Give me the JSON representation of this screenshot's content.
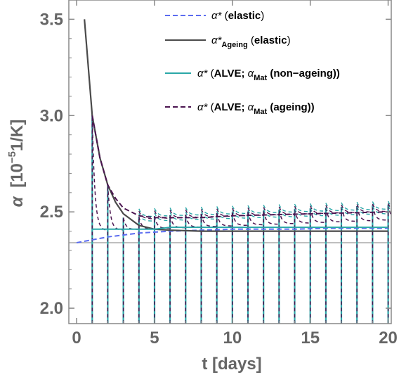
{
  "chart_data": {
    "type": "line",
    "xlabel": {
      "symbol": "t",
      "unit": "[days]"
    },
    "ylabel": {
      "symbol": "α",
      "unit_prefix": "[10",
      "exponent": "−5",
      "unit_suffix": "1/K]"
    },
    "xlim": [
      -0.5,
      20.2
    ],
    "ylim": [
      1.92,
      3.6
    ],
    "xticks": [
      "0",
      "5",
      "10",
      "15",
      "20"
    ],
    "yticks": [
      "2.0",
      "2.5",
      "3.0",
      "3.5"
    ],
    "grid": false,
    "legend_position": "top-right",
    "colors": {
      "elastic": "#5B6CF0",
      "ageing_elastic": "#4a4a4a",
      "alve_nonageing": "#2AA8A8",
      "alve_ageing": "#4B1450",
      "reference": "#999999"
    },
    "reference_level": 2.34,
    "series": [
      {
        "key": "elastic",
        "legend": {
          "prefix": "α* (",
          "bold": "elastic",
          "suffix": ")"
        },
        "style": "dashed",
        "x": [
          0,
          2,
          4,
          6,
          8,
          10,
          12,
          14,
          16,
          18,
          20
        ],
        "y": [
          2.34,
          2.37,
          2.39,
          2.4,
          2.405,
          2.41,
          2.41,
          2.41,
          2.415,
          2.415,
          2.415
        ]
      },
      {
        "key": "ageing_elastic",
        "legend": {
          "prefix": "α*",
          "sub": "Ageing",
          "bold": "elastic",
          "suffix": ")"
        },
        "style": "solid",
        "x": [
          0.5,
          1,
          1.5,
          2,
          2.5,
          3,
          4,
          5,
          6,
          8,
          10,
          15,
          20
        ],
        "y": [
          3.5,
          3.0,
          2.78,
          2.64,
          2.55,
          2.49,
          2.43,
          2.41,
          2.405,
          2.4,
          2.4,
          2.4,
          2.4
        ]
      },
      {
        "key": "alve_nonageing",
        "legend": {
          "prefix": "α* (",
          "bold": "ALVE; ",
          "alpha": "α",
          "sub": "Mat",
          "tail": " (non−ageing))"
        },
        "style": "solid",
        "x": [
          1,
          2,
          3,
          4,
          5,
          6,
          8,
          10,
          12,
          14,
          16,
          18,
          20
        ],
        "y": [
          2.41,
          2.41,
          2.41,
          2.41,
          2.41,
          2.42,
          2.42,
          2.42,
          2.42,
          2.42,
          2.42,
          2.42,
          2.42
        ]
      },
      {
        "key": "alve_ageing",
        "legend": {
          "prefix": "α* (",
          "bold": "ALVE; ",
          "alpha": "α",
          "sub": "Mat",
          "tail": " (ageing))"
        },
        "style": "dashed",
        "x": [
          1,
          1.5,
          2,
          2.5,
          3,
          4,
          5,
          6,
          8,
          10,
          15,
          20
        ],
        "y": [
          3.0,
          2.78,
          2.64,
          2.57,
          2.52,
          2.48,
          2.47,
          2.47,
          2.47,
          2.48,
          2.49,
          2.5
        ]
      }
    ],
    "cycle_days": [
      1,
      2,
      3,
      4,
      5,
      6,
      7,
      8,
      9,
      10,
      11,
      12,
      13,
      14,
      15,
      16,
      17,
      18,
      19,
      20
    ]
  }
}
